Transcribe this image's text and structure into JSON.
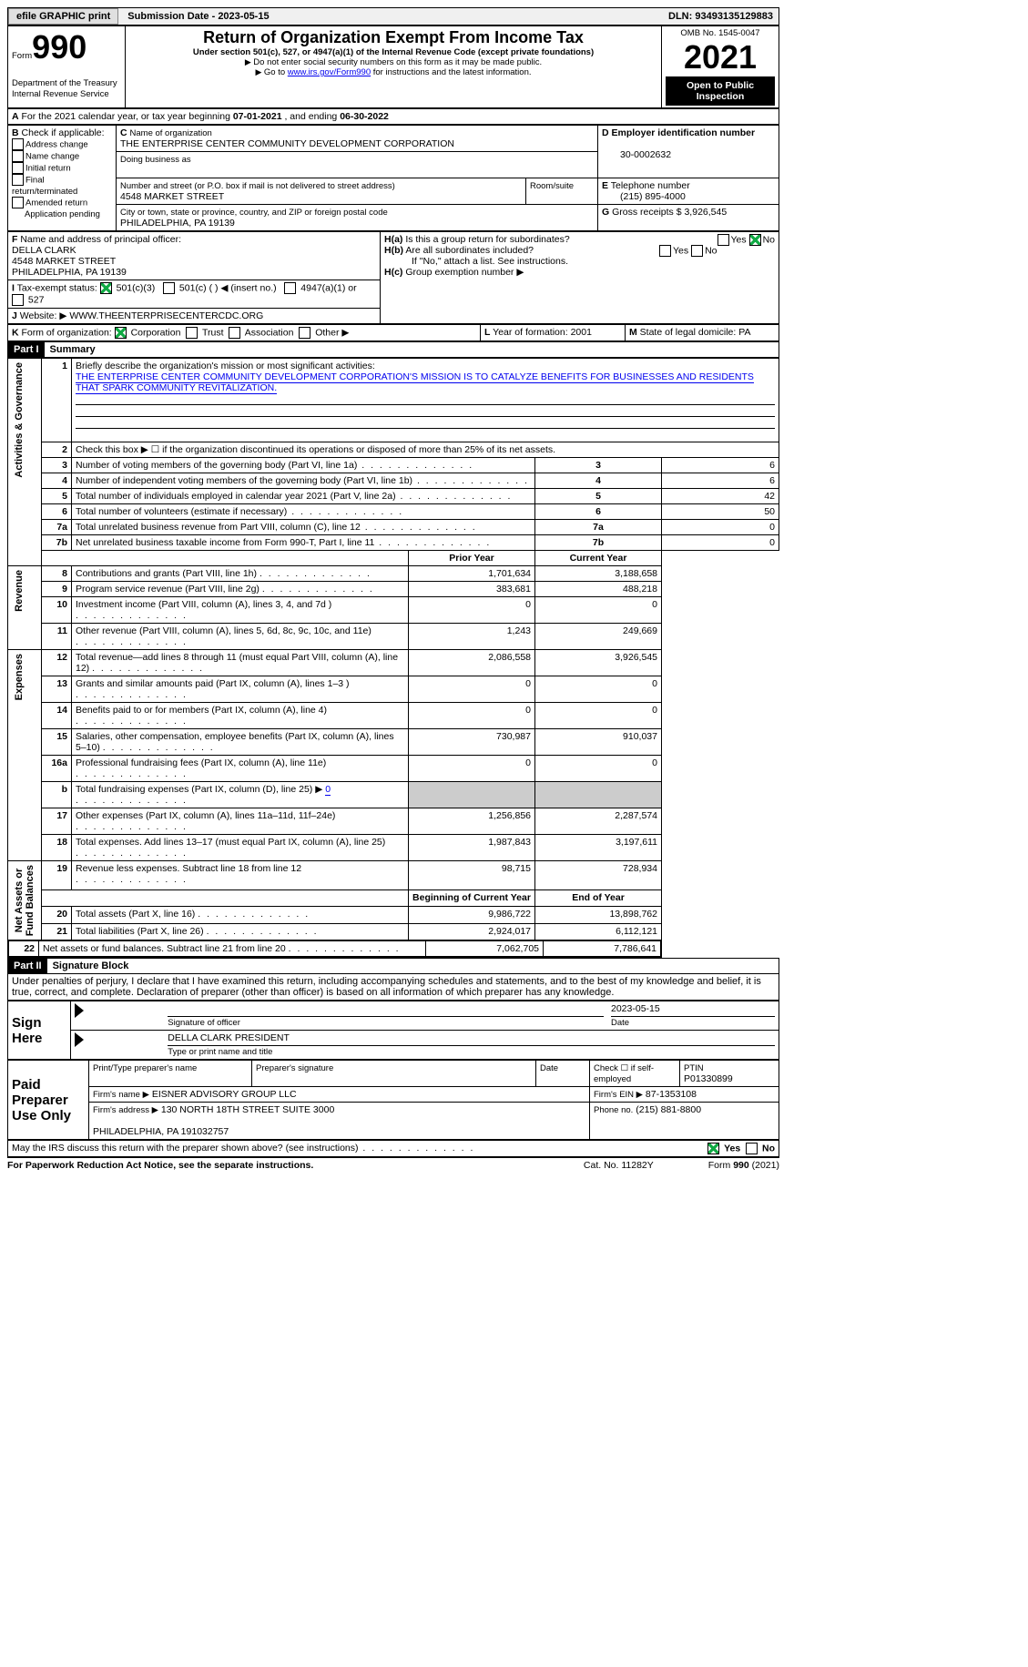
{
  "topbar": {
    "efile": "efile GRAPHIC print",
    "submission": "Submission Date - 2023-05-15",
    "dln": "DLN: 93493135129883"
  },
  "header": {
    "form_label": "Form",
    "form_no": "990",
    "omb": "OMB No. 1545-0047",
    "title": "Return of Organization Exempt From Income Tax",
    "sub1": "Under section 501(c), 527, or 4947(a)(1) of the Internal Revenue Code (except private foundations)",
    "sub2": "Do not enter social security numbers on this form as it may be made public.",
    "sub3_pre": "Go to ",
    "sub3_link": "www.irs.gov/Form990",
    "sub3_post": " for instructions and the latest information.",
    "year": "2021",
    "open": "Open to Public Inspection",
    "dept": "Department of the Treasury\nInternal Revenue Service"
  },
  "A": {
    "text": "For the 2021 calendar year, or tax year beginning ",
    "begin": "07-01-2021",
    "mid": " , and ending ",
    "end": "06-30-2022"
  },
  "B": {
    "label": "Check if applicable:",
    "opts": [
      "Address change",
      "Name change",
      "Initial return",
      "Final return/terminated",
      "Amended return",
      "Application pending"
    ]
  },
  "C": {
    "name_label": "Name of organization",
    "name": "THE ENTERPRISE CENTER COMMUNITY DEVELOPMENT CORPORATION",
    "dba_label": "Doing business as",
    "dba": "",
    "addr_label": "Number and street (or P.O. box if mail is not delivered to street address)",
    "room_label": "Room/suite",
    "addr": "4548 MARKET STREET",
    "city_label": "City or town, state or province, country, and ZIP or foreign postal code",
    "city": "PHILADELPHIA, PA  19139"
  },
  "D": {
    "label": "Employer identification number",
    "val": "30-0002632"
  },
  "E": {
    "label": "Telephone number",
    "val": "(215) 895-4000"
  },
  "G": {
    "label": "Gross receipts $",
    "val": "3,926,545"
  },
  "F": {
    "label": "Name and address of principal officer:",
    "name": "DELLA CLARK",
    "addr": "4548 MARKET STREET\nPHILADELPHIA, PA  19139"
  },
  "H": {
    "a": "Is this a group return for subordinates?",
    "b": "Are all subordinates included?",
    "note": "If \"No,\" attach a list. See instructions.",
    "c": "Group exemption number ▶",
    "yes": "Yes",
    "no": "No"
  },
  "I": {
    "label": "Tax-exempt status:",
    "opts": [
      "501(c)(3)",
      "501(c) (  ) ◀ (insert no.)",
      "4947(a)(1) or",
      "527"
    ]
  },
  "J": {
    "label": "Website: ▶",
    "val": "WWW.THEENTERPRISECENTERCDC.ORG"
  },
  "K": {
    "label": "Form of organization:",
    "opts": [
      "Corporation",
      "Trust",
      "Association",
      "Other ▶"
    ]
  },
  "L": {
    "label": "Year of formation:",
    "val": "2001"
  },
  "M": {
    "label": "State of legal domicile:",
    "val": "PA"
  },
  "part1": {
    "hdr": "Part I",
    "title": "Summary"
  },
  "line1": {
    "label": "Briefly describe the organization's mission or most significant activities:",
    "text": "THE ENTERPRISE CENTER COMMUNITY DEVELOPMENT CORPORATION'S MISSION IS TO CATALYZE BENEFITS FOR BUSINESSES AND RESIDENTS THAT SPARK COMMUNITY REVITALIZATION."
  },
  "line2": "Check this box ▶ ☐ if the organization discontinued its operations or disposed of more than 25% of its net assets.",
  "summary_rows": [
    {
      "n": "3",
      "t": "Number of voting members of the governing body (Part VI, line 1a)",
      "v": "6"
    },
    {
      "n": "4",
      "t": "Number of independent voting members of the governing body (Part VI, line 1b)",
      "v": "6"
    },
    {
      "n": "5",
      "t": "Total number of individuals employed in calendar year 2021 (Part V, line 2a)",
      "v": "42"
    },
    {
      "n": "6",
      "t": "Total number of volunteers (estimate if necessary)",
      "v": "50"
    },
    {
      "n": "7a",
      "t": "Total unrelated business revenue from Part VIII, column (C), line 12",
      "v": "0"
    },
    {
      "n": "7b",
      "t": "Net unrelated business taxable income from Form 990-T, Part I, line 11",
      "v": "0"
    }
  ],
  "two_col_hdr": {
    "prior": "Prior Year",
    "current": "Current Year"
  },
  "revenue": [
    {
      "n": "8",
      "t": "Contributions and grants (Part VIII, line 1h)",
      "p": "1,701,634",
      "c": "3,188,658"
    },
    {
      "n": "9",
      "t": "Program service revenue (Part VIII, line 2g)",
      "p": "383,681",
      "c": "488,218"
    },
    {
      "n": "10",
      "t": "Investment income (Part VIII, column (A), lines 3, 4, and 7d )",
      "p": "0",
      "c": "0"
    },
    {
      "n": "11",
      "t": "Other revenue (Part VIII, column (A), lines 5, 6d, 8c, 9c, 10c, and 11e)",
      "p": "1,243",
      "c": "249,669"
    },
    {
      "n": "12",
      "t": "Total revenue—add lines 8 through 11 (must equal Part VIII, column (A), line 12)",
      "p": "2,086,558",
      "c": "3,926,545"
    }
  ],
  "expenses": [
    {
      "n": "13",
      "t": "Grants and similar amounts paid (Part IX, column (A), lines 1–3 )",
      "p": "0",
      "c": "0"
    },
    {
      "n": "14",
      "t": "Benefits paid to or for members (Part IX, column (A), line 4)",
      "p": "0",
      "c": "0"
    },
    {
      "n": "15",
      "t": "Salaries, other compensation, employee benefits (Part IX, column (A), lines 5–10)",
      "p": "730,987",
      "c": "910,037"
    },
    {
      "n": "16a",
      "t": "Professional fundraising fees (Part IX, column (A), line 11e)",
      "p": "0",
      "c": "0"
    },
    {
      "n": "b",
      "t": "Total fundraising expenses (Part IX, column (D), line 25) ▶",
      "p": "",
      "c": "",
      "shade": true,
      "inline": "0"
    },
    {
      "n": "17",
      "t": "Other expenses (Part IX, column (A), lines 11a–11d, 11f–24e)",
      "p": "1,256,856",
      "c": "2,287,574"
    },
    {
      "n": "18",
      "t": "Total expenses. Add lines 13–17 (must equal Part IX, column (A), line 25)",
      "p": "1,987,843",
      "c": "3,197,611"
    },
    {
      "n": "19",
      "t": "Revenue less expenses. Subtract line 18 from line 12",
      "p": "98,715",
      "c": "728,934"
    }
  ],
  "na_hdr": {
    "begin": "Beginning of Current Year",
    "end": "End of Year"
  },
  "netassets": [
    {
      "n": "20",
      "t": "Total assets (Part X, line 16)",
      "p": "9,986,722",
      "c": "13,898,762"
    },
    {
      "n": "21",
      "t": "Total liabilities (Part X, line 26)",
      "p": "2,924,017",
      "c": "6,112,121"
    },
    {
      "n": "22",
      "t": "Net assets or fund balances. Subtract line 21 from line 20",
      "p": "7,062,705",
      "c": "7,786,641"
    }
  ],
  "side_labels": {
    "ag": "Activities & Governance",
    "rev": "Revenue",
    "exp": "Expenses",
    "na": "Net Assets or\nFund Balances"
  },
  "part2": {
    "hdr": "Part II",
    "title": "Signature Block",
    "decl": "Under penalties of perjury, I declare that I have examined this return, including accompanying schedules and statements, and to the best of my knowledge and belief, it is true, correct, and complete. Declaration of preparer (other than officer) is based on all information of which preparer has any knowledge."
  },
  "sign": {
    "here": "Sign Here",
    "sig_label": "Signature of officer",
    "date_label": "Date",
    "date": "2023-05-15",
    "name": "DELLA CLARK  PRESIDENT",
    "name_label": "Type or print name and title"
  },
  "paid": {
    "label": "Paid Preparer Use Only",
    "pt_name": "Print/Type preparer's name",
    "sig": "Preparer's signature",
    "date": "Date",
    "check": "Check ☐ if self-employed",
    "ptin_label": "PTIN",
    "ptin": "P01330899",
    "firm_label": "Firm's name  ▶",
    "firm": "EISNER ADVISORY GROUP LLC",
    "ein_label": "Firm's EIN ▶",
    "ein": "87-1353108",
    "addr_label": "Firm's address ▶",
    "addr": "130 NORTH 18TH STREET SUITE 3000\n\nPHILADELPHIA, PA  191032757",
    "phone_label": "Phone no.",
    "phone": "(215) 881-8800"
  },
  "footer": {
    "discuss": "May the IRS discuss this return with the preparer shown above? (see instructions)",
    "yes": "Yes",
    "no": "No",
    "pra": "For Paperwork Reduction Act Notice, see the separate instructions.",
    "cat": "Cat. No. 11282Y",
    "form": "Form 990 (2021)"
  }
}
